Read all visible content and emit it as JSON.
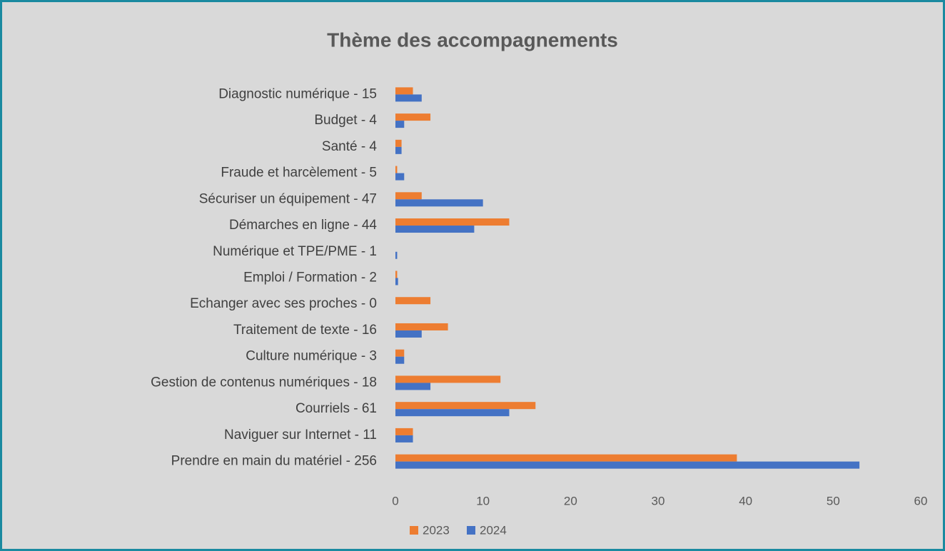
{
  "chart_data": {
    "type": "hbar",
    "title": "Thème des accompagnements",
    "categories": [
      "Diagnostic numérique - 15",
      "Budget - 4",
      "Santé - 4",
      "Fraude et harcèlement - 5",
      "Sécuriser un équipement - 47",
      "Démarches en ligne - 44",
      "Numérique et TPE/PME - 1",
      "Emploi / Formation - 2",
      "Echanger avec ses proches - 0",
      "Traitement de texte - 16",
      "Culture numérique - 3",
      "Gestion de contenus numériques - 18",
      "Courriels - 61",
      "Naviguer sur Internet - 11",
      "Prendre en main du matériel - 256"
    ],
    "series": [
      {
        "name": "2023",
        "color": "#ed7d31",
        "values": [
          2,
          4,
          0.7,
          0.2,
          3,
          13,
          0,
          0.2,
          4,
          6,
          1,
          12,
          16,
          2,
          39
        ]
      },
      {
        "name": "2024",
        "color": "#4472c4",
        "values": [
          3,
          1,
          0.7,
          1,
          10,
          9,
          0.2,
          0.3,
          0,
          3,
          1,
          4,
          13,
          2,
          53
        ]
      }
    ],
    "xlim": [
      0,
      60
    ],
    "xticks": [
      0,
      10,
      20,
      30,
      40,
      50,
      60
    ],
    "grid": false,
    "legend": "bottom"
  }
}
